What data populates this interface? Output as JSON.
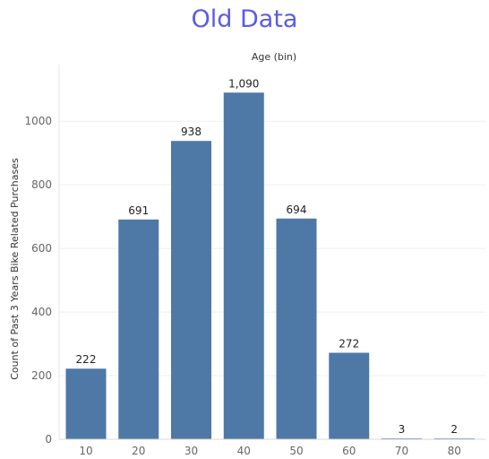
{
  "title": "Old Data",
  "chart_data": {
    "type": "bar",
    "title": "Old Data",
    "xlabel": "Age (bin)",
    "ylabel": "Count of Past 3 Years Bike Related Purchases",
    "categories": [
      "10",
      "20",
      "30",
      "40",
      "50",
      "60",
      "70",
      "80"
    ],
    "values": [
      222,
      691,
      938,
      1090,
      694,
      272,
      3,
      2
    ],
    "data_labels": [
      "222",
      "691",
      "938",
      "1,090",
      "694",
      "272",
      "3",
      "2"
    ],
    "yticks": [
      "0",
      "200",
      "400",
      "600",
      "800",
      "1000"
    ],
    "ylim": [
      0,
      1150
    ],
    "grid": true,
    "bar_color": "#4e79a7"
  }
}
